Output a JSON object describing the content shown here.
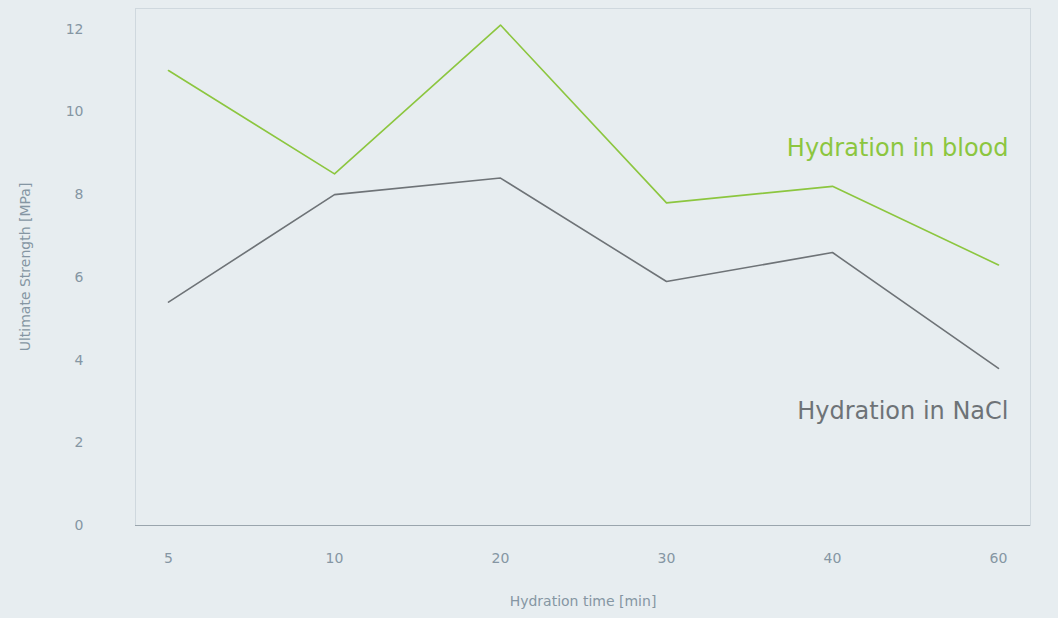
{
  "chart_data": {
    "type": "line",
    "x_label": "Hydration time [min]",
    "y_label": "Ultimate Strength [MPa]",
    "categories": [
      "5",
      "10",
      "20",
      "30",
      "40",
      "60"
    ],
    "series": [
      {
        "name": "Hydration in blood",
        "color": "#8cc63f",
        "values": [
          11.0,
          8.5,
          12.1,
          7.8,
          8.2,
          6.3
        ]
      },
      {
        "name": "Hydration in NaCl",
        "color": "#6e7377",
        "values": [
          5.4,
          8.0,
          8.4,
          5.9,
          6.6,
          3.8
        ]
      }
    ],
    "ylim": [
      0,
      12.5
    ],
    "yticks": [
      0,
      2,
      4,
      6,
      8,
      10,
      12
    ],
    "grid": false
  }
}
